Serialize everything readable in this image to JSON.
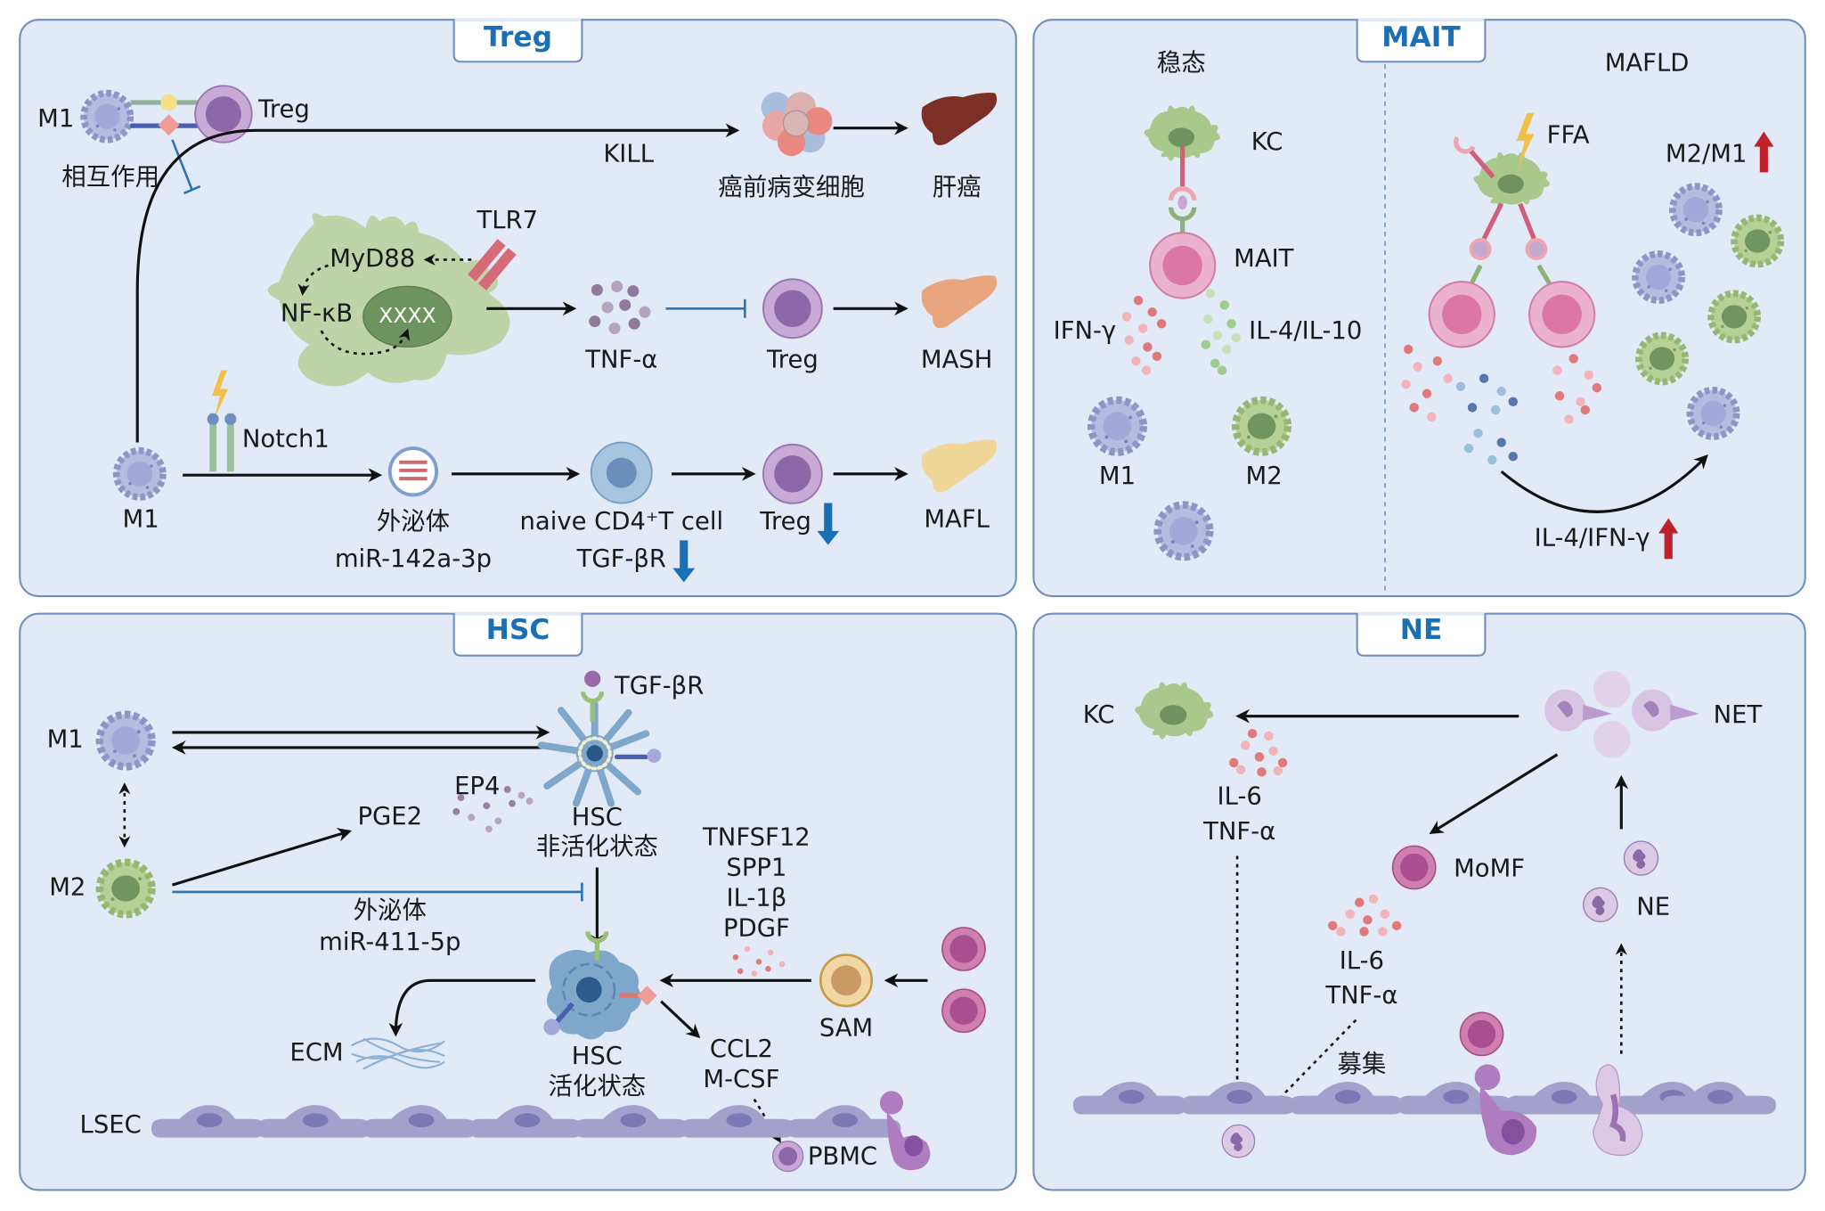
{
  "panels": {
    "treg": {
      "title": "Treg",
      "m1_top": "M1",
      "treg_top": "Treg",
      "interaction": "相互作用",
      "kill": "KILL",
      "precancer": "癌前病变细胞",
      "liver_cancer": "肝癌",
      "tlr7": "TLR7",
      "myd88": "MyD88",
      "nfkb": "NF-κB",
      "dna": "XXXX",
      "tnfa": "TNF-α",
      "treg_mid": "Treg",
      "mash": "MASH",
      "m1_bottom": "M1",
      "notch1": "Notch1",
      "exosome": "外泌体",
      "mirna": "miR-142a-3p",
      "naive": "naive CD4⁺T cell",
      "tgfbr": "TGF-βR",
      "treg_bottom": "Treg",
      "mafl": "MAFL"
    },
    "mait": {
      "title": "MAIT",
      "steady": "稳态",
      "kc": "KC",
      "mait": "MAIT",
      "ifng": "IFN-γ",
      "il4il10": "IL-4/IL-10",
      "m1": "M1",
      "m2": "M2",
      "mafld": "MAFLD",
      "ffa": "FFA",
      "m2m1": "M2/M1",
      "il4ifng": "IL-4/IFN-γ"
    },
    "hsc": {
      "title": "HSC",
      "m1": "M1",
      "m2": "M2",
      "tgfbr": "TGF-βR",
      "ep4": "EP4",
      "pge2": "PGE2",
      "hsc_inactive": "HSC",
      "inactive_state": "非活化状态",
      "exosome": "外泌体",
      "mirna": "miR-411-5p",
      "factors": [
        "TNFSF12",
        "SPP1",
        "IL-1β",
        "PDGF"
      ],
      "sam": "SAM",
      "ecm": "ECM",
      "hsc_active": "HSC",
      "active_state": "活化状态",
      "ccl2": "CCL2",
      "mcsf": "M-CSF",
      "lsec": "LSEC",
      "pbmc": "PBMC"
    },
    "ne": {
      "title": "NE",
      "kc": "KC",
      "net": "NET",
      "il6_a": "IL-6",
      "tnfa_a": "TNF-α",
      "momf": "MoMF",
      "ne": "NE",
      "il6_b": "IL-6",
      "tnfa_b": "TNF-α",
      "recruit": "募集"
    }
  },
  "colors": {
    "panel_bg": "#e1eaf6",
    "panel_border": "#6f8fbd",
    "title": "#1a6fb5",
    "inhibit": "#2a74b8",
    "down_arrow": "#1a6fb5",
    "up_arrow": "#c0202a"
  },
  "icons": [
    "macrophage-m1",
    "macrophage-m2",
    "treg-cell",
    "mait-cell",
    "kupffer-cell",
    "hepatic-stellate-cell",
    "liver",
    "lightning",
    "neutrophil",
    "exosome",
    "lsec-endothelium"
  ]
}
